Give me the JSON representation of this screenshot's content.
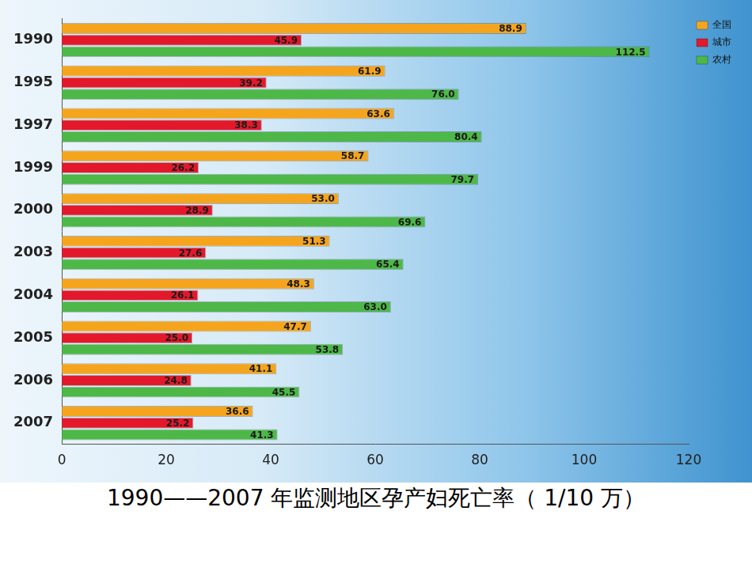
{
  "chart_data": {
    "type": "bar",
    "orientation": "horizontal",
    "title": "1990——2007 年监测地区孕产妇死亡率（ 1/10 万）",
    "categories": [
      "1990",
      "1995",
      "1997",
      "1999",
      "2000",
      "2003",
      "2004",
      "2005",
      "2006",
      "2007"
    ],
    "series": [
      {
        "name": "全国",
        "color": "#f5a51d",
        "values": [
          88.9,
          61.9,
          63.6,
          58.7,
          53.0,
          51.3,
          48.3,
          47.7,
          41.1,
          36.6
        ],
        "value_labels": [
          "88.9",
          "61.9",
          "63.6",
          "58.7",
          "53.0",
          "51.3",
          "48.3",
          "47.7",
          "41.1",
          "36.6"
        ]
      },
      {
        "name": "城市",
        "color": "#e3192b",
        "values": [
          45.9,
          39.2,
          38.3,
          26.2,
          28.9,
          27.6,
          26.1,
          25.0,
          24.8,
          25.2
        ],
        "value_labels": [
          "45.9",
          "39.2",
          "38.3",
          "26.2",
          "28.9",
          "27.6",
          "26.1",
          "25.0",
          "24.8",
          "25.2"
        ]
      },
      {
        "name": "农村",
        "color": "#4db848",
        "values": [
          112.5,
          76.0,
          80.4,
          79.7,
          69.6,
          65.4,
          63.0,
          53.8,
          45.5,
          41.3
        ],
        "value_labels": [
          "112.5",
          "76.0",
          "80.4",
          "79.7",
          "69.6",
          "65.4",
          "63.0",
          "53.8",
          "45.5",
          "41.3"
        ]
      }
    ],
    "xlim": [
      0,
      120
    ],
    "xticks": [
      0,
      20,
      40,
      60,
      80,
      100,
      120
    ],
    "grid": false,
    "legend": "right",
    "data_labels": true
  }
}
